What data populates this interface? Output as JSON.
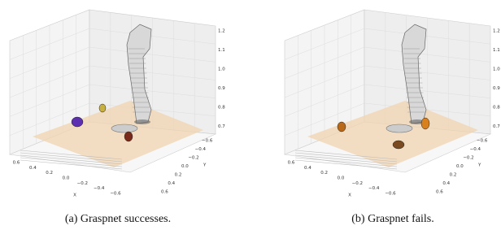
{
  "panels": [
    {
      "caption": "(a) Graspnet successes.",
      "z_ticks": [
        "1.2",
        "1.1",
        "1.0",
        "0.9",
        "0.8",
        "0.7"
      ],
      "x_ticks": [
        "0.6",
        "0.4",
        "0.2",
        "0.0",
        "−0.2",
        "−0.4",
        "−0.6"
      ],
      "y_ticks": [
        "−0.6",
        "−0.4",
        "−0.2",
        "0.0",
        "0.2",
        "0.4",
        "0.6"
      ],
      "x_label": "X",
      "y_label": "Y"
    },
    {
      "caption": "(b) Graspnet fails.",
      "z_ticks": [
        "1.2",
        "1.1",
        "1.0",
        "0.9",
        "0.8",
        "0.7"
      ],
      "x_ticks": [
        "0.6",
        "0.4",
        "0.2",
        "0.0",
        "−0.2",
        "−0.4",
        "−0.6"
      ],
      "y_ticks": [
        "−0.6",
        "−0.4",
        "−0.2",
        "0.0",
        "0.2",
        "0.4",
        "0.6"
      ],
      "x_label": "X",
      "y_label": "Y"
    }
  ]
}
